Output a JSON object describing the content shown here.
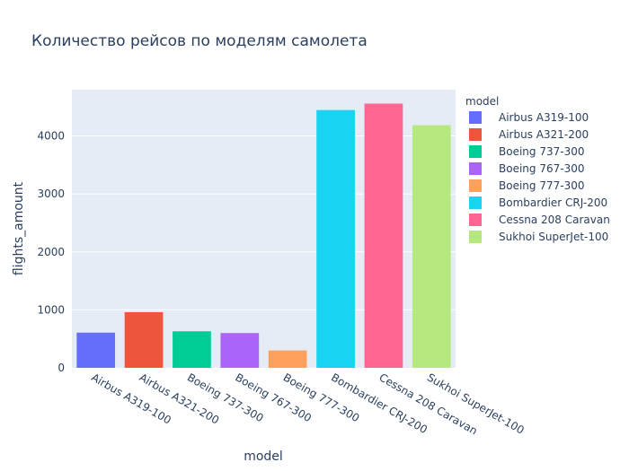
{
  "chart_data": {
    "type": "bar",
    "title": "Количество рейсов по моделям самолета",
    "xlabel": "model",
    "ylabel": "flights_amount",
    "categories": [
      "Airbus A319-100",
      "Airbus A321-200",
      "Boeing 737-300",
      "Boeing 767-300",
      "Boeing 777-300",
      "Bombardier CRJ-200",
      "Cessna 208 Caravan",
      "Sukhoi SuperJet-100"
    ],
    "values": [
      607,
      960,
      630,
      600,
      300,
      4446,
      4557,
      4185
    ],
    "colors": [
      "#636efa",
      "#EF553B",
      "#00cc96",
      "#ab63fa",
      "#FFA15A",
      "#19d3f3",
      "#FF6692",
      "#B6E880"
    ],
    "ylim": [
      0,
      4797
    ],
    "yticks": [
      0,
      1000,
      2000,
      3000,
      4000
    ],
    "grid": true,
    "legend": {
      "title": "model",
      "placement": "right",
      "entries": [
        "Airbus A319-100",
        "Airbus A321-200",
        "Boeing 737-300",
        "Boeing 767-300",
        "Boeing 777-300",
        "Bombardier CRJ-200",
        "Cessna 208 Caravan",
        "Sukhoi SuperJet-100"
      ]
    },
    "plot_background": "#e5ecf6"
  }
}
